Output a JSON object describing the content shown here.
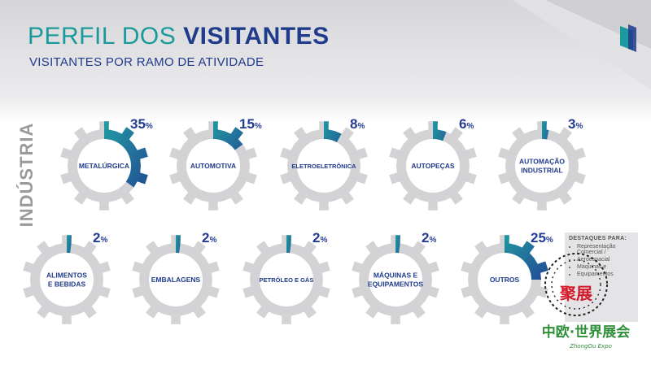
{
  "header": {
    "title_light": "PERFIL DOS",
    "title_bold": "VISITANTES",
    "subtitle": "VISITANTES POR RAMO DE ATIVIDADE"
  },
  "side_label": "INDÚSTRIA",
  "colors": {
    "gear": "#d3d3d5",
    "teal": "#20a3a3",
    "blue": "#233c92",
    "title_teal": "#1b9a9b",
    "title_blue": "#1f3b8c"
  },
  "chart_data": {
    "type": "pie",
    "unit": "%",
    "categories": [
      "METALÚRGICA",
      "AUTOMOTIVA",
      "ELETROELETRÔNICA",
      "AUTOPEÇAS",
      "AUTOMAÇÃO INDUSTRIAL",
      "ALIMENTOS E BEBIDAS",
      "EMBALAGENS",
      "PETRÓLEO E GÁS",
      "MÁQUINAS E EQUIPAMENTOS",
      "OUTROS"
    ],
    "labels": [
      [
        "METALÚRGICA"
      ],
      [
        "AUTOMOTIVA"
      ],
      [
        "ELETROELETRÔNICA"
      ],
      [
        "AUTOPEÇAS"
      ],
      [
        "AUTOMAÇÃO",
        "INDUSTRIAL"
      ],
      [
        "ALIMENTOS",
        "E BEBIDAS"
      ],
      [
        "EMBALAGENS"
      ],
      [
        "PETRÓLEO E GÁS"
      ],
      [
        "MÁQUINAS E",
        "EQUIPAMENTOS"
      ],
      [
        "OUTROS"
      ]
    ],
    "values": [
      35,
      15,
      8,
      6,
      3,
      2,
      2,
      2,
      2,
      25
    ]
  },
  "note": {
    "heading": "DESTAQUES PARA:",
    "items": [
      "Representação Comercial /",
      "Aeroespacial",
      "Máquinas e",
      "Equipamentos"
    ]
  },
  "logo": {
    "badge": "聚展",
    "brand": "中欧·世界展会",
    "brand_en": "ZhongOu Expo"
  }
}
